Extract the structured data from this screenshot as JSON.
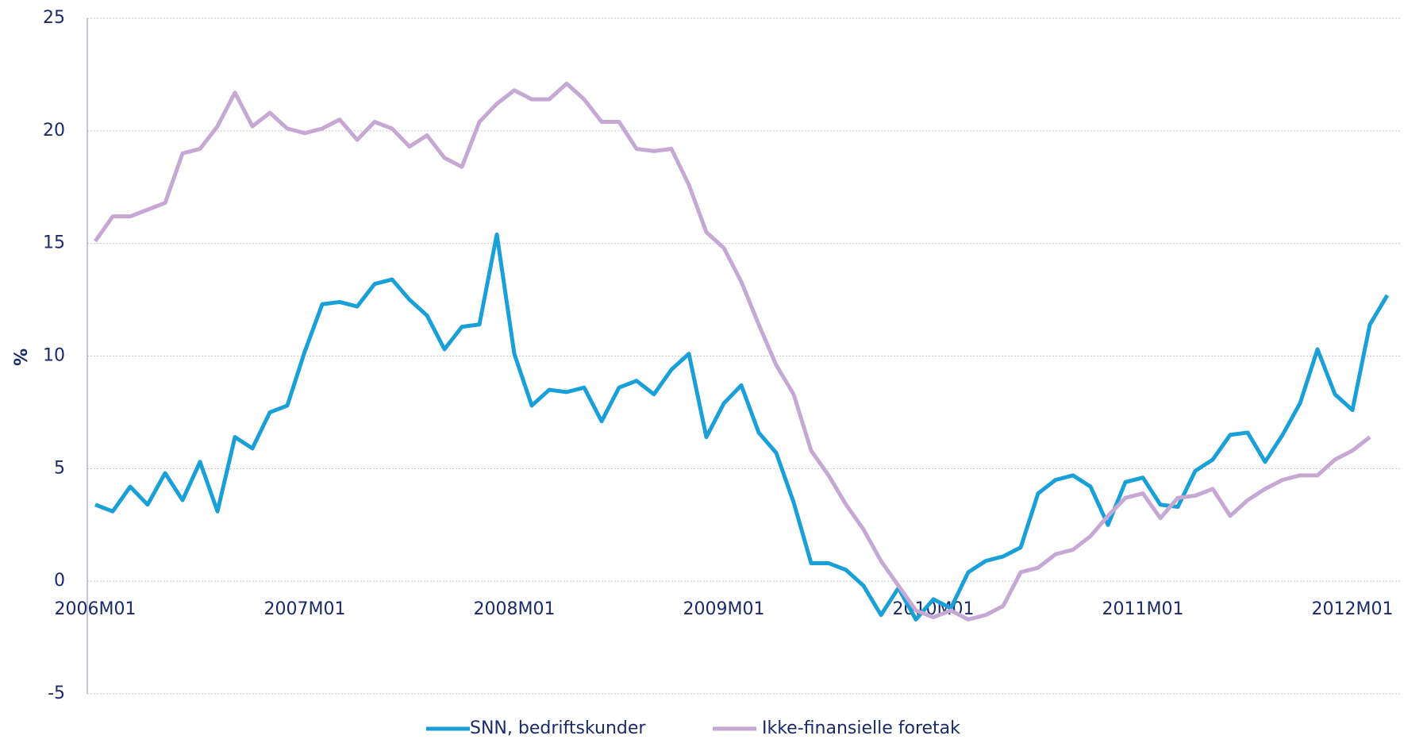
{
  "chart_data": {
    "type": "line",
    "y_label": "%",
    "categories": [
      "2006M01",
      null,
      null,
      null,
      null,
      null,
      null,
      null,
      null,
      null,
      null,
      null,
      "2007M01",
      null,
      null,
      null,
      null,
      null,
      null,
      null,
      null,
      null,
      null,
      null,
      "2008M01",
      null,
      null,
      null,
      null,
      null,
      null,
      null,
      null,
      null,
      null,
      null,
      "2009M01",
      null,
      null,
      null,
      null,
      null,
      null,
      null,
      null,
      null,
      null,
      null,
      "2010M01",
      null,
      null,
      null,
      null,
      null,
      null,
      null,
      null,
      null,
      null,
      null,
      "2011M01",
      null,
      null,
      null,
      null,
      null,
      null,
      null,
      null,
      null,
      null,
      null,
      "2012M01",
      null,
      null
    ],
    "series": [
      {
        "name": "SNN, bedriftskunder",
        "color": "#1aa0d8",
        "values": [
          3.4,
          3.1,
          4.2,
          3.4,
          4.8,
          3.6,
          5.3,
          3.1,
          6.4,
          5.9,
          7.5,
          7.8,
          10.2,
          12.3,
          12.4,
          12.2,
          13.2,
          13.4,
          12.5,
          11.8,
          10.3,
          11.3,
          11.4,
          15.4,
          10.1,
          7.8,
          8.5,
          8.4,
          8.6,
          7.1,
          8.6,
          8.9,
          8.3,
          9.4,
          10.1,
          6.4,
          7.9,
          8.7,
          6.6,
          5.7,
          3.5,
          0.8,
          0.8,
          0.5,
          -0.2,
          -1.5,
          -0.3,
          -1.7,
          -0.8,
          -1.2,
          0.4,
          0.9,
          1.1,
          1.5,
          3.9,
          4.5,
          4.7,
          4.2,
          2.5,
          4.4,
          4.6,
          3.4,
          3.3,
          4.9,
          5.4,
          6.5,
          6.6,
          5.3,
          6.5,
          7.9,
          10.3,
          8.3,
          7.6,
          11.4,
          12.7
        ]
      },
      {
        "name": "Ikke-finansielle foretak",
        "color": "#c5a8d4",
        "values": [
          15.1,
          16.2,
          16.2,
          16.5,
          16.8,
          19.0,
          19.2,
          20.2,
          21.7,
          20.2,
          20.8,
          20.1,
          19.9,
          20.1,
          20.5,
          19.6,
          20.4,
          20.1,
          19.3,
          19.8,
          18.8,
          18.4,
          20.4,
          21.2,
          21.8,
          21.4,
          21.4,
          22.1,
          21.4,
          20.4,
          20.4,
          19.2,
          19.1,
          19.2,
          17.6,
          15.5,
          14.8,
          13.3,
          11.4,
          9.6,
          8.3,
          5.8,
          4.7,
          3.4,
          2.3,
          0.9,
          -0.2,
          -1.3,
          -1.6,
          -1.3,
          -1.7,
          -1.5,
          -1.1,
          0.4,
          0.6,
          1.2,
          1.4,
          2.0,
          2.9,
          3.7,
          3.9,
          2.8,
          3.7,
          3.8,
          4.1,
          2.9,
          3.6,
          4.1,
          4.5,
          4.7,
          4.7,
          5.4,
          5.8,
          6.4,
          null
        ]
      }
    ],
    "ylim": [
      -5,
      25
    ],
    "yticks": [
      -5,
      0,
      5,
      10,
      15,
      20,
      25
    ],
    "grid": true
  }
}
